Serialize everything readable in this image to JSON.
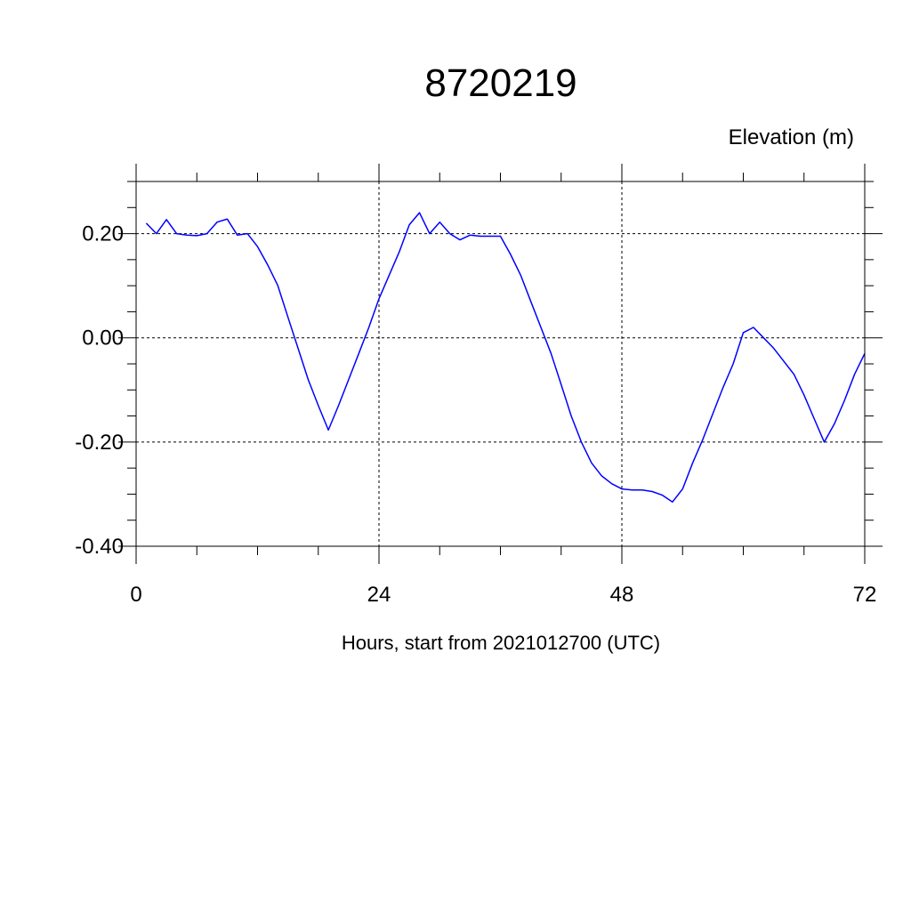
{
  "chart_data": {
    "type": "line",
    "title": "8720219",
    "units_label": "Elevation (m)",
    "xlabel": "Hours, start from 2021012700 (UTC)",
    "ylabel": "",
    "xlim": [
      0,
      72
    ],
    "ylim": [
      -0.4,
      0.3
    ],
    "xticks": [
      {
        "value": 0,
        "label": "0"
      },
      {
        "value": 24,
        "label": "24"
      },
      {
        "value": 48,
        "label": "48"
      },
      {
        "value": 72,
        "label": "72"
      }
    ],
    "yticks": [
      {
        "value": 0.2,
        "label": "0.20"
      },
      {
        "value": 0.0,
        "label": "0.00"
      },
      {
        "value": -0.2,
        "label": "-0.20"
      },
      {
        "value": -0.4,
        "label": "-0.40"
      }
    ],
    "grid": "dashed-at-major-ticks",
    "series": [
      {
        "color": "#0000ff",
        "x": [
          1,
          2,
          3,
          4,
          5,
          6,
          7,
          8,
          9,
          10,
          11,
          12,
          13,
          14,
          15,
          16,
          17,
          18,
          19,
          20,
          21,
          22,
          23,
          24,
          25,
          26,
          27,
          28,
          29,
          30,
          31,
          32,
          33,
          34,
          35,
          36,
          37,
          38,
          39,
          40,
          41,
          42,
          43,
          44,
          45,
          46,
          47,
          48,
          49,
          50,
          51,
          52,
          53,
          54,
          55,
          56,
          57,
          58,
          59,
          60,
          61,
          62,
          63,
          64,
          65,
          66,
          67,
          68,
          69,
          70,
          71,
          72
        ],
        "values": [
          0.22,
          0.2,
          0.227,
          0.2,
          0.197,
          0.196,
          0.2,
          0.222,
          0.228,
          0.197,
          0.2,
          0.175,
          0.14,
          0.1,
          0.04,
          -0.02,
          -0.08,
          -0.13,
          -0.177,
          -0.13,
          -0.08,
          -0.03,
          0.02,
          0.075,
          0.12,
          0.165,
          0.217,
          0.24,
          0.2,
          0.222,
          0.2,
          0.188,
          0.197,
          0.195,
          0.195,
          0.195,
          0.16,
          0.12,
          0.07,
          0.02,
          -0.03,
          -0.09,
          -0.15,
          -0.2,
          -0.24,
          -0.265,
          -0.28,
          -0.29,
          -0.292,
          -0.292,
          -0.295,
          -0.302,
          -0.315,
          -0.29,
          -0.24,
          -0.195,
          -0.145,
          -0.095,
          -0.05,
          0.01,
          0.02,
          0.0,
          -0.02,
          -0.045,
          -0.07,
          -0.11,
          -0.155,
          -0.2,
          -0.165,
          -0.12,
          -0.07,
          -0.03
        ]
      }
    ]
  }
}
